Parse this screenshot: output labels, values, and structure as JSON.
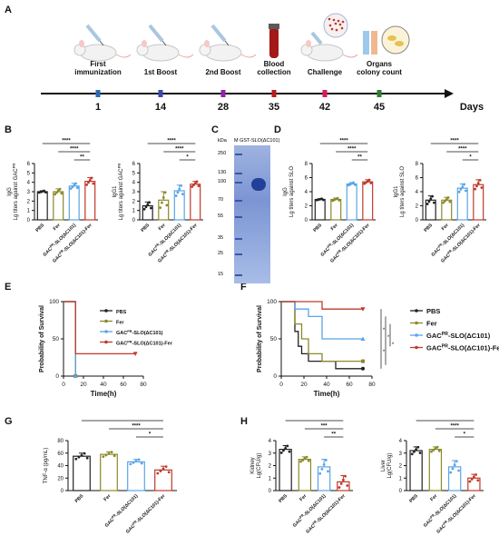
{
  "panel_letters": [
    "A",
    "B",
    "C",
    "D",
    "E",
    "F",
    "G",
    "H"
  ],
  "timeline": {
    "events": [
      {
        "label": "First\nimmunization",
        "day": "1",
        "color": "#2b6cb0",
        "icon": "mouse-syringe-icon"
      },
      {
        "label": "1st Boost",
        "day": "14",
        "color": "#3949ab",
        "icon": "mouse-syringe-icon"
      },
      {
        "label": "2nd Boost",
        "day": "28",
        "color": "#8e24aa",
        "icon": "mouse-syringe-icon"
      },
      {
        "label": "Blood\ncollection",
        "day": "35",
        "color": "#b71c1c",
        "icon": "blood-tube-icon"
      },
      {
        "label": "Challenge",
        "day": "42",
        "color": "#d81b60",
        "icon": "mouse-bacteria-icon"
      },
      {
        "label": "Organs\ncolony count",
        "day": "45",
        "color": "#2e7d32",
        "icon": "tube-petri-icon"
      }
    ],
    "axis_label": "Days"
  },
  "colors": {
    "PBS": "#222222",
    "Fer": "#8a8a2a",
    "GAC": "#5aa5e6",
    "GACFer": "#c0392b"
  },
  "groups": [
    "PBS",
    "Fer",
    "GACPR-SLO(ΔC101)",
    "GACPR-SLO(ΔC101)-Fer"
  ],
  "chart_data": [
    {
      "panel": "B",
      "type": "bar",
      "title": "",
      "ylabel": "IgG\nLg titers against GACPR",
      "ylim": [
        0,
        6
      ],
      "yticks": [
        0,
        1,
        2,
        3,
        4,
        5,
        6
      ],
      "categories": [
        "PBS",
        "Fer",
        "GACPR-SLO(ΔC101)",
        "GACPR-SLO(ΔC101)-Fer"
      ],
      "values": [
        3.0,
        3.0,
        3.6,
        4.1
      ],
      "errors": [
        0.1,
        0.3,
        0.3,
        0.4
      ],
      "significance": [
        {
          "from": 0,
          "to": 3,
          "label": "****"
        },
        {
          "from": 1,
          "to": 3,
          "label": "****"
        },
        {
          "from": 2,
          "to": 3,
          "label": "**"
        }
      ]
    },
    {
      "panel": "B2",
      "type": "bar",
      "ylabel": "IgG1\nLg titers against GACPR",
      "ylim": [
        0,
        6
      ],
      "yticks": [
        0,
        1,
        2,
        3,
        4,
        5,
        6
      ],
      "categories": [
        "PBS",
        "Fer",
        "GACPR-SLO(ΔC101)",
        "GACPR-SLO(ΔC101)-Fer"
      ],
      "values": [
        1.5,
        2.1,
        3.1,
        3.8
      ],
      "errors": [
        0.4,
        0.9,
        0.6,
        0.3
      ],
      "significance": [
        {
          "from": 0,
          "to": 3,
          "label": "****"
        },
        {
          "from": 1,
          "to": 3,
          "label": "****"
        },
        {
          "from": 2,
          "to": 3,
          "label": "*"
        }
      ]
    },
    {
      "panel": "D",
      "type": "bar",
      "ylabel": "IgG\nLg titers against SLO",
      "ylim": [
        0,
        8
      ],
      "yticks": [
        0,
        2,
        4,
        6,
        8
      ],
      "categories": [
        "PBS",
        "Fer",
        "GACPR-SLO(ΔC101)",
        "GACPR-SLO(ΔC101)-Fer"
      ],
      "values": [
        2.9,
        2.9,
        5.1,
        5.4
      ],
      "errors": [
        0.1,
        0.2,
        0.2,
        0.3
      ],
      "significance": [
        {
          "from": 0,
          "to": 3,
          "label": "****"
        },
        {
          "from": 1,
          "to": 3,
          "label": "****"
        },
        {
          "from": 2,
          "to": 3,
          "label": "**"
        }
      ]
    },
    {
      "panel": "D2",
      "type": "bar",
      "ylabel": "IgG1\nLg titers against SLO",
      "ylim": [
        0,
        8
      ],
      "yticks": [
        0,
        2,
        4,
        6,
        8
      ],
      "categories": [
        "PBS",
        "Fer",
        "GACPR-SLO(ΔC101)",
        "GACPR-SLO(ΔC101)-Fer"
      ],
      "values": [
        2.8,
        2.8,
        4.5,
        5.0
      ],
      "errors": [
        0.6,
        0.4,
        0.6,
        0.7
      ],
      "significance": [
        {
          "from": 0,
          "to": 3,
          "label": "****"
        },
        {
          "from": 1,
          "to": 3,
          "label": "****"
        },
        {
          "from": 2,
          "to": 3,
          "label": "*"
        }
      ]
    },
    {
      "panel": "E",
      "type": "line",
      "xlabel": "Time(h)",
      "ylabel": "Probability of Survival",
      "xlim": [
        0,
        80
      ],
      "ylim": [
        0,
        100
      ],
      "xticks": [
        0,
        20,
        40,
        60,
        80
      ],
      "yticks": [
        0,
        50,
        100
      ],
      "legend_placement": "right",
      "series": [
        {
          "name": "PBS",
          "x": [
            0,
            12,
            12
          ],
          "y": [
            100,
            100,
            0
          ]
        },
        {
          "name": "Fer",
          "x": [
            0,
            12,
            12
          ],
          "y": [
            100,
            100,
            0
          ]
        },
        {
          "name": "GACPR-SLO(ΔC101)",
          "x": [
            0,
            12,
            12
          ],
          "y": [
            100,
            100,
            0
          ]
        },
        {
          "name": "GACPR-SLO(ΔC101)-Fer",
          "x": [
            0,
            12,
            12,
            72
          ],
          "y": [
            100,
            100,
            30,
            30
          ]
        }
      ]
    },
    {
      "panel": "F",
      "type": "line",
      "xlabel": "Time(h)",
      "ylabel": "Probability of Survival",
      "xlim": [
        0,
        80
      ],
      "ylim": [
        0,
        100
      ],
      "xticks": [
        0,
        20,
        40,
        60,
        80
      ],
      "yticks": [
        0,
        50,
        100
      ],
      "legend_placement": "right",
      "series": [
        {
          "name": "PBS",
          "x": [
            0,
            12,
            12,
            15,
            15,
            18,
            18,
            24,
            24,
            36,
            36,
            48,
            48,
            72
          ],
          "y": [
            100,
            100,
            60,
            60,
            40,
            40,
            30,
            30,
            20,
            20,
            20,
            20,
            10,
            10
          ]
        },
        {
          "name": "Fer",
          "x": [
            0,
            12,
            12,
            18,
            18,
            24,
            24,
            36,
            36,
            72
          ],
          "y": [
            100,
            100,
            70,
            70,
            50,
            50,
            30,
            30,
            20,
            20
          ]
        },
        {
          "name": "GACPR-SLO(ΔC101)",
          "x": [
            0,
            12,
            12,
            24,
            24,
            36,
            36,
            72
          ],
          "y": [
            100,
            100,
            90,
            90,
            80,
            80,
            50,
            50
          ]
        },
        {
          "name": "GACPR-SLO(ΔC101)-Fer",
          "x": [
            0,
            36,
            36,
            72
          ],
          "y": [
            100,
            100,
            90,
            90
          ]
        }
      ],
      "significance": [
        "*",
        "*",
        "*",
        "*"
      ]
    },
    {
      "panel": "G",
      "type": "bar",
      "ylabel": "TNF-α (pg/mL)",
      "ylim": [
        0,
        80
      ],
      "yticks": [
        0,
        20,
        40,
        60,
        80
      ],
      "categories": [
        "PBS",
        "Fer",
        "GACPR-SLO(ΔC101)",
        "GACPR-SLO(ΔC101)-Fer"
      ],
      "values": [
        55,
        58,
        46,
        33
      ],
      "errors": [
        5,
        4,
        4,
        6
      ],
      "significance": [
        {
          "from": 0,
          "to": 3,
          "label": "***"
        },
        {
          "from": 1,
          "to": 3,
          "label": "****"
        },
        {
          "from": 2,
          "to": 3,
          "label": "*"
        }
      ]
    },
    {
      "panel": "H",
      "type": "bar",
      "ylabel": "Kidney\nLg(CFU/g)",
      "ylim": [
        0,
        4
      ],
      "yticks": [
        0,
        1,
        2,
        3,
        4
      ],
      "categories": [
        "PBS",
        "Fer",
        "GACPR-SLO(ΔC101)",
        "GACPR-SLO(ΔC101)-Fer"
      ],
      "values": [
        3.3,
        2.5,
        1.9,
        0.7
      ],
      "errors": [
        0.3,
        0.2,
        0.6,
        0.5
      ],
      "significance": [
        {
          "from": 0,
          "to": 3,
          "label": "****"
        },
        {
          "from": 1,
          "to": 3,
          "label": "***"
        },
        {
          "from": 2,
          "to": 3,
          "label": "**"
        }
      ]
    },
    {
      "panel": "H2",
      "type": "bar",
      "ylabel": "Liver\nLg(CFU/g)",
      "ylim": [
        0,
        4
      ],
      "yticks": [
        0,
        1,
        2,
        3,
        4
      ],
      "categories": [
        "PBS",
        "Fer",
        "GACPR-SLO(ΔC101)",
        "GACPR-SLO(ΔC101)-Fer"
      ],
      "values": [
        3.2,
        3.3,
        1.9,
        1.0
      ],
      "errors": [
        0.3,
        0.2,
        0.5,
        0.3
      ],
      "significance": [
        {
          "from": 0,
          "to": 3,
          "label": "****"
        },
        {
          "from": 1,
          "to": 3,
          "label": "****"
        },
        {
          "from": 2,
          "to": 3,
          "label": "*"
        }
      ]
    }
  ],
  "gel": {
    "header_unit": "kDa",
    "header_lanes": "M GST-SLO(ΔC101)",
    "markers": [
      "250",
      "130",
      "100",
      "70",
      "55",
      "35",
      "25",
      "15"
    ]
  },
  "legend_labels": [
    "PBS",
    "Fer",
    "GACPR-SLO(ΔC101)",
    "GACPR-SLO(ΔC101)-Fer"
  ]
}
